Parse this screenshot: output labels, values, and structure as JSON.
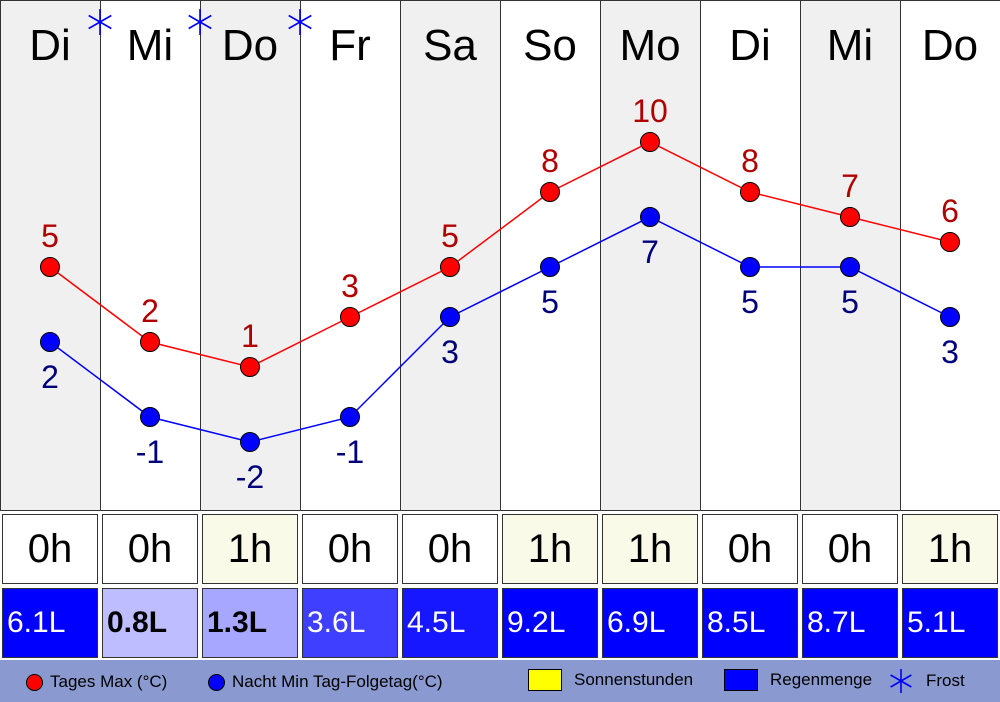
{
  "chart_data": {
    "type": "line",
    "categories": [
      "Di",
      "Mi",
      "Do",
      "Fr",
      "Sa",
      "So",
      "Mo",
      "Di",
      "Mi",
      "Do"
    ],
    "series": [
      {
        "name": "Tages Max (°C)",
        "color": "#ff0000",
        "values": [
          5,
          2,
          1,
          3,
          5,
          8,
          10,
          8,
          7,
          6
        ]
      },
      {
        "name": "Nacht Min Tag-Folgetag(°C)",
        "color": "#0000ff",
        "values": [
          2,
          -1,
          -2,
          -1,
          3,
          5,
          7,
          5,
          5,
          3
        ]
      }
    ],
    "frost": [
      false,
      true,
      true,
      true,
      false,
      false,
      false,
      false,
      false,
      false
    ],
    "shaded_columns": [
      true,
      false,
      true,
      false,
      true,
      false,
      true,
      false,
      true,
      false
    ],
    "sun_hours": [
      "0h",
      "0h",
      "1h",
      "0h",
      "0h",
      "1h",
      "1h",
      "0h",
      "0h",
      "1h"
    ],
    "rain": [
      "6.1L",
      "0.8L",
      "1.3L",
      "3.6L",
      "4.5L",
      "9.2L",
      "6.9L",
      "8.5L",
      "8.7L",
      "5.1L"
    ],
    "rain_values": [
      6.1,
      0.8,
      1.3,
      3.6,
      4.5,
      9.2,
      6.9,
      8.5,
      8.7,
      5.1
    ],
    "legend": {
      "max": "Tages Max (°C)",
      "min": "Nacht Min Tag-Folgetag(°C)",
      "sun": "Sonnenstunden",
      "rain": "Regenmenge",
      "frost": "Frost"
    },
    "colors": {
      "max": "#ff0000",
      "min": "#0000ff",
      "sun": "#ffff00",
      "rain": "#0000ff",
      "frost": "#0000ff",
      "shade": "#f0f0f0",
      "legend_bg": "#8a9ad0"
    }
  }
}
